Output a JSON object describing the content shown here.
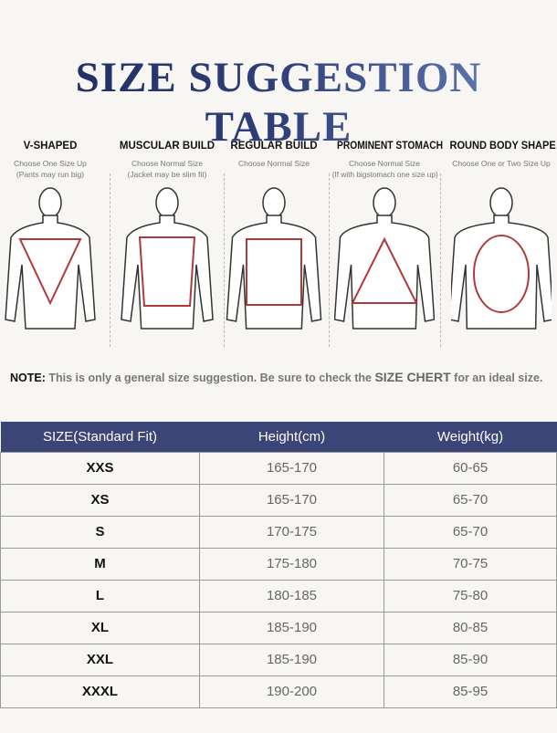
{
  "title": "SIZE SUGGESTION TABLE",
  "body_types": [
    {
      "name": "V-SHAPED",
      "lines": [
        "Choose One Size Up",
        "(Pants may run big)"
      ],
      "shape": "inverted-triangle"
    },
    {
      "name": "MUSCULAR BUILD",
      "lines": [
        "Choose Normal Size",
        "(Jacket may be slim fit)"
      ],
      "shape": "trapezoid"
    },
    {
      "name": "REGULAR BUILD",
      "lines": [
        "Choose Normal Size"
      ],
      "shape": "rectangle"
    },
    {
      "name": "PROMINENT STOMACH",
      "lines": [
        "Choose Normal Size",
        "(If with bigstomach one size up)"
      ],
      "shape": "triangle"
    },
    {
      "name": "ROUND BODY SHAPE",
      "lines": [
        "Choose One or Two Size Up"
      ],
      "shape": "oval"
    }
  ],
  "note": {
    "label": "NOTE:",
    "text1": "This is only a general size suggestion. Be sure to check the",
    "emph": "SIZE CHERT",
    "text2": "for an ideal size."
  },
  "table": {
    "headers": [
      "SIZE(Standard Fit)",
      "Height(cm)",
      "Weight(kg)"
    ],
    "rows": [
      [
        "XXS",
        "165-170",
        "60-65"
      ],
      [
        "XS",
        "165-170",
        "65-70"
      ],
      [
        "S",
        "170-175",
        "65-70"
      ],
      [
        "M",
        "175-180",
        "70-75"
      ],
      [
        "L",
        "180-185",
        "75-80"
      ],
      [
        "XL",
        "185-190",
        "80-85"
      ],
      [
        "XXL",
        "185-190",
        "85-90"
      ],
      [
        "XXXL",
        "190-200",
        "85-95"
      ]
    ]
  },
  "colors": {
    "header_bg": "#3b4577",
    "shape_stroke": "#b03a3a"
  }
}
